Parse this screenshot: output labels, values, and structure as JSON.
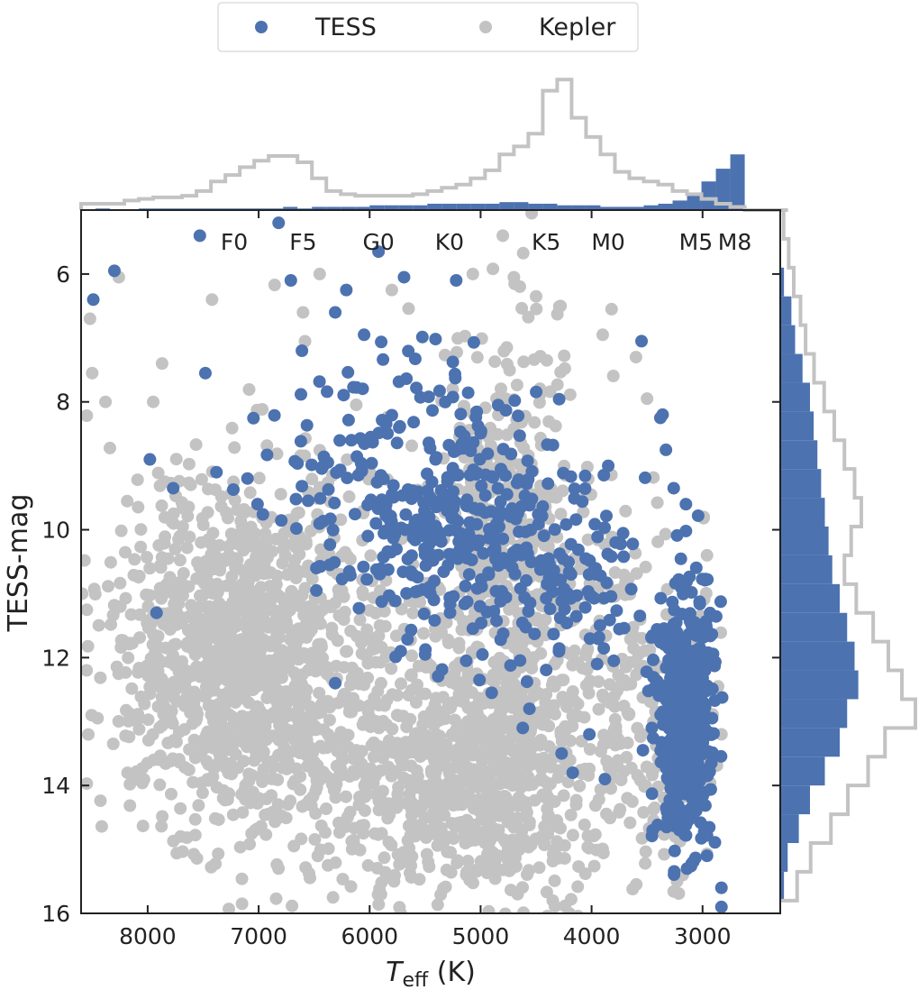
{
  "chart_data": {
    "type": "scatter",
    "xlabel": {
      "main": "T",
      "sub": "eff",
      "unit": " (K)"
    },
    "ylabel": "TESS-mag",
    "xlim": [
      8600,
      2300
    ],
    "ylim": [
      16,
      5
    ],
    "y_inverted": true,
    "x_inverted": true,
    "x_ticks": [
      "8000",
      "7000",
      "6000",
      "5000",
      "4000",
      "3000"
    ],
    "y_ticks": [
      "6",
      "8",
      "10",
      "12",
      "14",
      "16"
    ],
    "grid": false,
    "legend": {
      "placement": "top-center",
      "entries": [
        "TESS",
        "Kepler"
      ]
    },
    "colors": {
      "TESS": "#4c72b0",
      "Kepler": "#c3c3c3"
    },
    "spectral_types": [
      {
        "label": "F0",
        "teff": 7220
      },
      {
        "label": "F5",
        "teff": 6600
      },
      {
        "label": "G0",
        "teff": 5920
      },
      {
        "label": "K0",
        "teff": 5280
      },
      {
        "label": "K5",
        "teff": 4410
      },
      {
        "label": "M0",
        "teff": 3850
      },
      {
        "label": "M5",
        "teff": 3060
      },
      {
        "label": "M8",
        "teff": 2710
      }
    ],
    "series": [
      {
        "name": "TESS",
        "points": [
          [
            8490,
            6.4
          ],
          [
            8300,
            5.95
          ],
          [
            7980,
            8.9
          ],
          [
            7920,
            11.3
          ],
          [
            7770,
            9.35
          ],
          [
            7530,
            5.4
          ],
          [
            7480,
            7.55
          ],
          [
            7380,
            9.1
          ],
          [
            6820,
            5.2
          ],
          [
            6710,
            6.1
          ],
          [
            6610,
            7.2
          ],
          [
            6310,
            6.6
          ],
          [
            6210,
            6.25
          ],
          [
            6050,
            6.95
          ],
          [
            5920,
            5.65
          ],
          [
            5690,
            6.05
          ],
          [
            5220,
            6.1
          ],
          [
            3550,
            7.05
          ],
          [
            6480,
            10.6
          ],
          [
            6360,
            10.55
          ],
          [
            6310,
            12.4
          ],
          [
            5720,
            11.9
          ],
          [
            5500,
            11.95
          ],
          [
            5130,
            12.05
          ],
          [
            5010,
            12.35
          ],
          [
            4900,
            12.55
          ],
          [
            4560,
            12.8
          ],
          [
            4620,
            13.1
          ],
          [
            3880,
            13.9
          ],
          [
            3450,
            14.7
          ],
          [
            3140,
            15.3
          ],
          [
            2830,
            15.6
          ],
          [
            2830,
            15.9
          ],
          [
            2960,
            15.1
          ],
          [
            4270,
            13.5
          ],
          [
            4170,
            13.8
          ],
          [
            4020,
            13.2
          ],
          [
            3950,
            12.1
          ],
          [
            3800,
            12.05
          ],
          [
            7010,
            9.6
          ],
          [
            6660,
            9.98
          ],
          [
            6480,
            10.95
          ],
          [
            3360,
            8.2
          ],
          [
            3330,
            8.75
          ],
          [
            3380,
            8.25
          ],
          [
            3150,
            9.6
          ],
          [
            3040,
            9.78
          ],
          [
            3260,
            9.35
          ],
          [
            3150,
            10.02
          ],
          [
            3850,
            9.0
          ]
        ]
      },
      {
        "name": "Kepler",
        "points": [
          [
            8520,
            6.7
          ],
          [
            8260,
            6.05
          ],
          [
            7420,
            6.4
          ],
          [
            6600,
            6.6
          ],
          [
            6450,
            6.0
          ],
          [
            5800,
            6.25
          ],
          [
            5070,
            6.0
          ],
          [
            4700,
            6.05
          ],
          [
            4500,
            6.35
          ],
          [
            4280,
            6.5
          ],
          [
            3900,
            6.95
          ],
          [
            3600,
            7.3
          ],
          [
            3500,
            7.95
          ],
          [
            4800,
            5.4
          ],
          [
            4540,
            5.05
          ],
          [
            7870,
            7.4
          ],
          [
            7950,
            8.0
          ],
          [
            8500,
            7.55
          ],
          [
            8380,
            8.0
          ],
          [
            3820,
            6.55
          ],
          [
            2990,
            9.8
          ],
          [
            2960,
            10.4
          ],
          [
            7150,
            15.85
          ],
          [
            6330,
            15.75
          ],
          [
            5780,
            15.5
          ],
          [
            4350,
            15.8
          ],
          [
            4200,
            16.0
          ],
          [
            5720,
            16.0
          ],
          [
            8590,
            11.0
          ],
          [
            8550,
            12.2
          ],
          [
            2860,
            12.45
          ],
          [
            2830,
            13.2
          ],
          [
            3230,
            15.5
          ],
          [
            7060,
            12.0
          ],
          [
            7220,
            11.8
          ],
          [
            6880,
            12.2
          ],
          [
            7500,
            12.6
          ],
          [
            7000,
            13.0
          ],
          [
            6500,
            13.8
          ],
          [
            6200,
            14.5
          ]
        ]
      }
    ],
    "hist_top": {
      "bin_start": 8600,
      "bin_width": 130,
      "kepler": [
        4,
        4,
        4,
        6,
        7,
        8,
        8,
        9,
        12,
        18,
        22,
        27,
        31,
        34,
        34,
        30,
        20,
        12,
        10,
        9,
        9,
        9,
        9,
        10,
        12,
        14,
        16,
        20,
        25,
        35,
        40,
        48,
        75,
        82,
        58,
        46,
        35,
        24,
        20,
        18,
        16,
        12,
        10,
        7,
        4,
        2,
        0,
        0,
        0
      ],
      "tess": [
        0,
        1,
        0,
        0,
        1,
        1,
        1,
        1,
        1,
        1,
        1,
        1,
        1,
        1,
        2,
        1,
        2,
        2,
        2,
        2,
        3,
        3,
        3,
        3,
        4,
        4,
        4,
        4,
        4,
        5,
        5,
        4,
        4,
        3,
        3,
        3,
        2,
        2,
        2,
        3,
        4,
        6,
        10,
        18,
        26,
        35,
        24,
        10,
        3
      ]
    },
    "hist_right": {
      "bin_start": 5.0,
      "bin_width": 0.45,
      "kepler": [
        2,
        5,
        8,
        12,
        15,
        20,
        26,
        32,
        38,
        44,
        48,
        42,
        38,
        45,
        55,
        64,
        72,
        80,
        62,
        52,
        40,
        30,
        18,
        10
      ],
      "tess": [
        0,
        0,
        1,
        3,
        4,
        6,
        8,
        9,
        10,
        11,
        12,
        13,
        14,
        16,
        18,
        20,
        21,
        18,
        16,
        12,
        8,
        5,
        2,
        1
      ]
    }
  }
}
